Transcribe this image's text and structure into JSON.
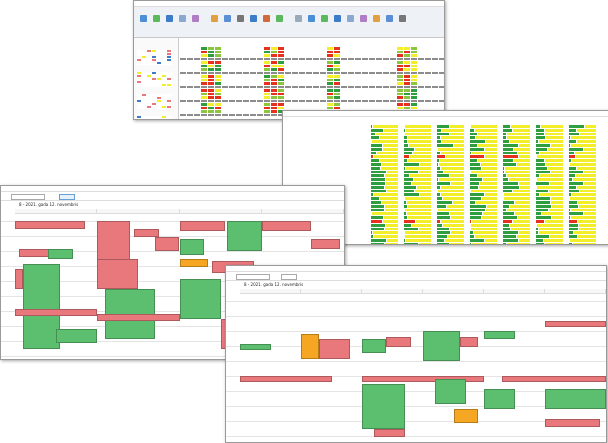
{
  "calendar_left": {
    "date_title": "8 - 2021. gada 12. novembris"
  },
  "calendar_bottom": {
    "date_title": "8 - 2021. gada 12. novembris"
  },
  "colors": {
    "red": "#e9787d",
    "green": "#5cbf6f",
    "yellow": "#f2ef2a",
    "orange": "#f5a623",
    "gray": "#8c8c8c",
    "dark_green": "#2e9e3e",
    "bright_red": "#e8301f"
  }
}
